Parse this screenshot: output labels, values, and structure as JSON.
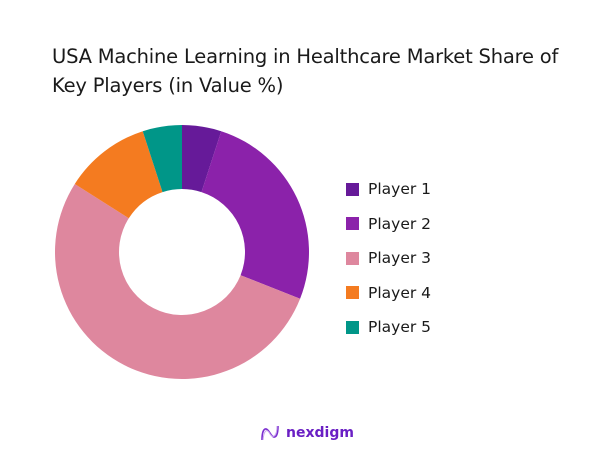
{
  "title": "USA Machine Learning in Healthcare Market Share of Key Players (in Value %)",
  "logo": {
    "text": "nexdigm",
    "icon": "nexdigm-wave-icon"
  },
  "legend": [
    {
      "label": "Player 1",
      "color": "#661a99"
    },
    {
      "label": "Player 2",
      "color": "#8b22aa"
    },
    {
      "label": "Player 3",
      "color": "#de879e"
    },
    {
      "label": "Player 4",
      "color": "#f47b20"
    },
    {
      "label": "Player 5",
      "color": "#009688"
    }
  ],
  "chart_data": {
    "type": "pie",
    "subtype": "donut",
    "title": "USA Machine Learning in Healthcare Market Share of Key Players (in Value %)",
    "categories": [
      "Player 1",
      "Player 2",
      "Player 3",
      "Player 4",
      "Player 5"
    ],
    "values": [
      5,
      26,
      53,
      11,
      5
    ],
    "colors": [
      "#661a99",
      "#8b22aa",
      "#de879e",
      "#f47b20",
      "#009688"
    ],
    "legend_position": "right",
    "start_angle": "top, clockwise"
  }
}
